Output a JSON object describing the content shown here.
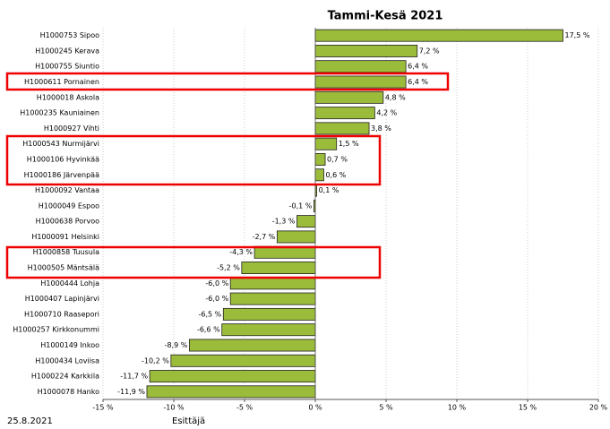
{
  "chart_data": {
    "type": "barh",
    "title": "Tammi-Kesä  2021",
    "categories": [
      "H1000753 Sipoo",
      "H1000245 Kerava",
      "H1000755 Siuntio",
      "H1000611 Pornainen",
      "H1000018 Askola",
      "H1000235 Kauniainen",
      "H1000927 Vihti",
      "H1000543 Nurmijärvi",
      "H1000106 Hyvinkää",
      "H1000186 Järvenpää",
      "H1000092 Vantaa",
      "H1000049 Espoo",
      "H1000638 Porvoo",
      "H1000091 Helsinki",
      "H1000858 Tuusula",
      "H1000505 Mäntsälä",
      "H1000444 Lohja",
      "H1000407 Lapinjärvi",
      "H1000710 Raasepori",
      "H1000257 Kirkkonummi",
      "H1000149 Inkoo",
      "H1000434 Loviisa",
      "H1000224 Karkkila",
      "H1000078 Hanko"
    ],
    "values": [
      17.5,
      7.2,
      6.4,
      6.4,
      4.8,
      4.2,
      3.8,
      1.5,
      0.7,
      0.6,
      0.1,
      -0.1,
      -1.3,
      -2.7,
      -4.3,
      -5.2,
      -6.0,
      -6.0,
      -6.5,
      -6.6,
      -8.9,
      -10.2,
      -11.7,
      -11.9
    ],
    "value_labels": [
      "17,5 %",
      "7,2 %",
      "6,4 %",
      "6,4 %",
      "4,8 %",
      "4,2 %",
      "3,8 %",
      "1,5 %",
      "0,7 %",
      "0,6 %",
      "0,1 %",
      "-0,1 %",
      "-1,3 %",
      "-2,7 %",
      "-4,3 %",
      "-5,2 %",
      "-6,0 %",
      "-6,0 %",
      "-6,5 %",
      "-6,6 %",
      "-8,9 %",
      "-10,2 %",
      "-11,7 %",
      "-11,9 %"
    ],
    "color": "#9bbb3b",
    "xlim": [
      -15,
      20
    ],
    "xticks": [
      {
        "value": -15,
        "label": "-15 %"
      },
      {
        "value": -10,
        "label": "-10 %"
      },
      {
        "value": -5,
        "label": "-5 %"
      },
      {
        "value": 0,
        "label": "0 %"
      },
      {
        "value": 5,
        "label": "5 %"
      },
      {
        "value": 10,
        "label": "10 %"
      },
      {
        "value": 15,
        "label": "15 %"
      },
      {
        "value": 20,
        "label": "20 %"
      }
    ],
    "grid": true
  },
  "footer": {
    "date": "25.8.2021",
    "presenter": "Esittäjä"
  }
}
